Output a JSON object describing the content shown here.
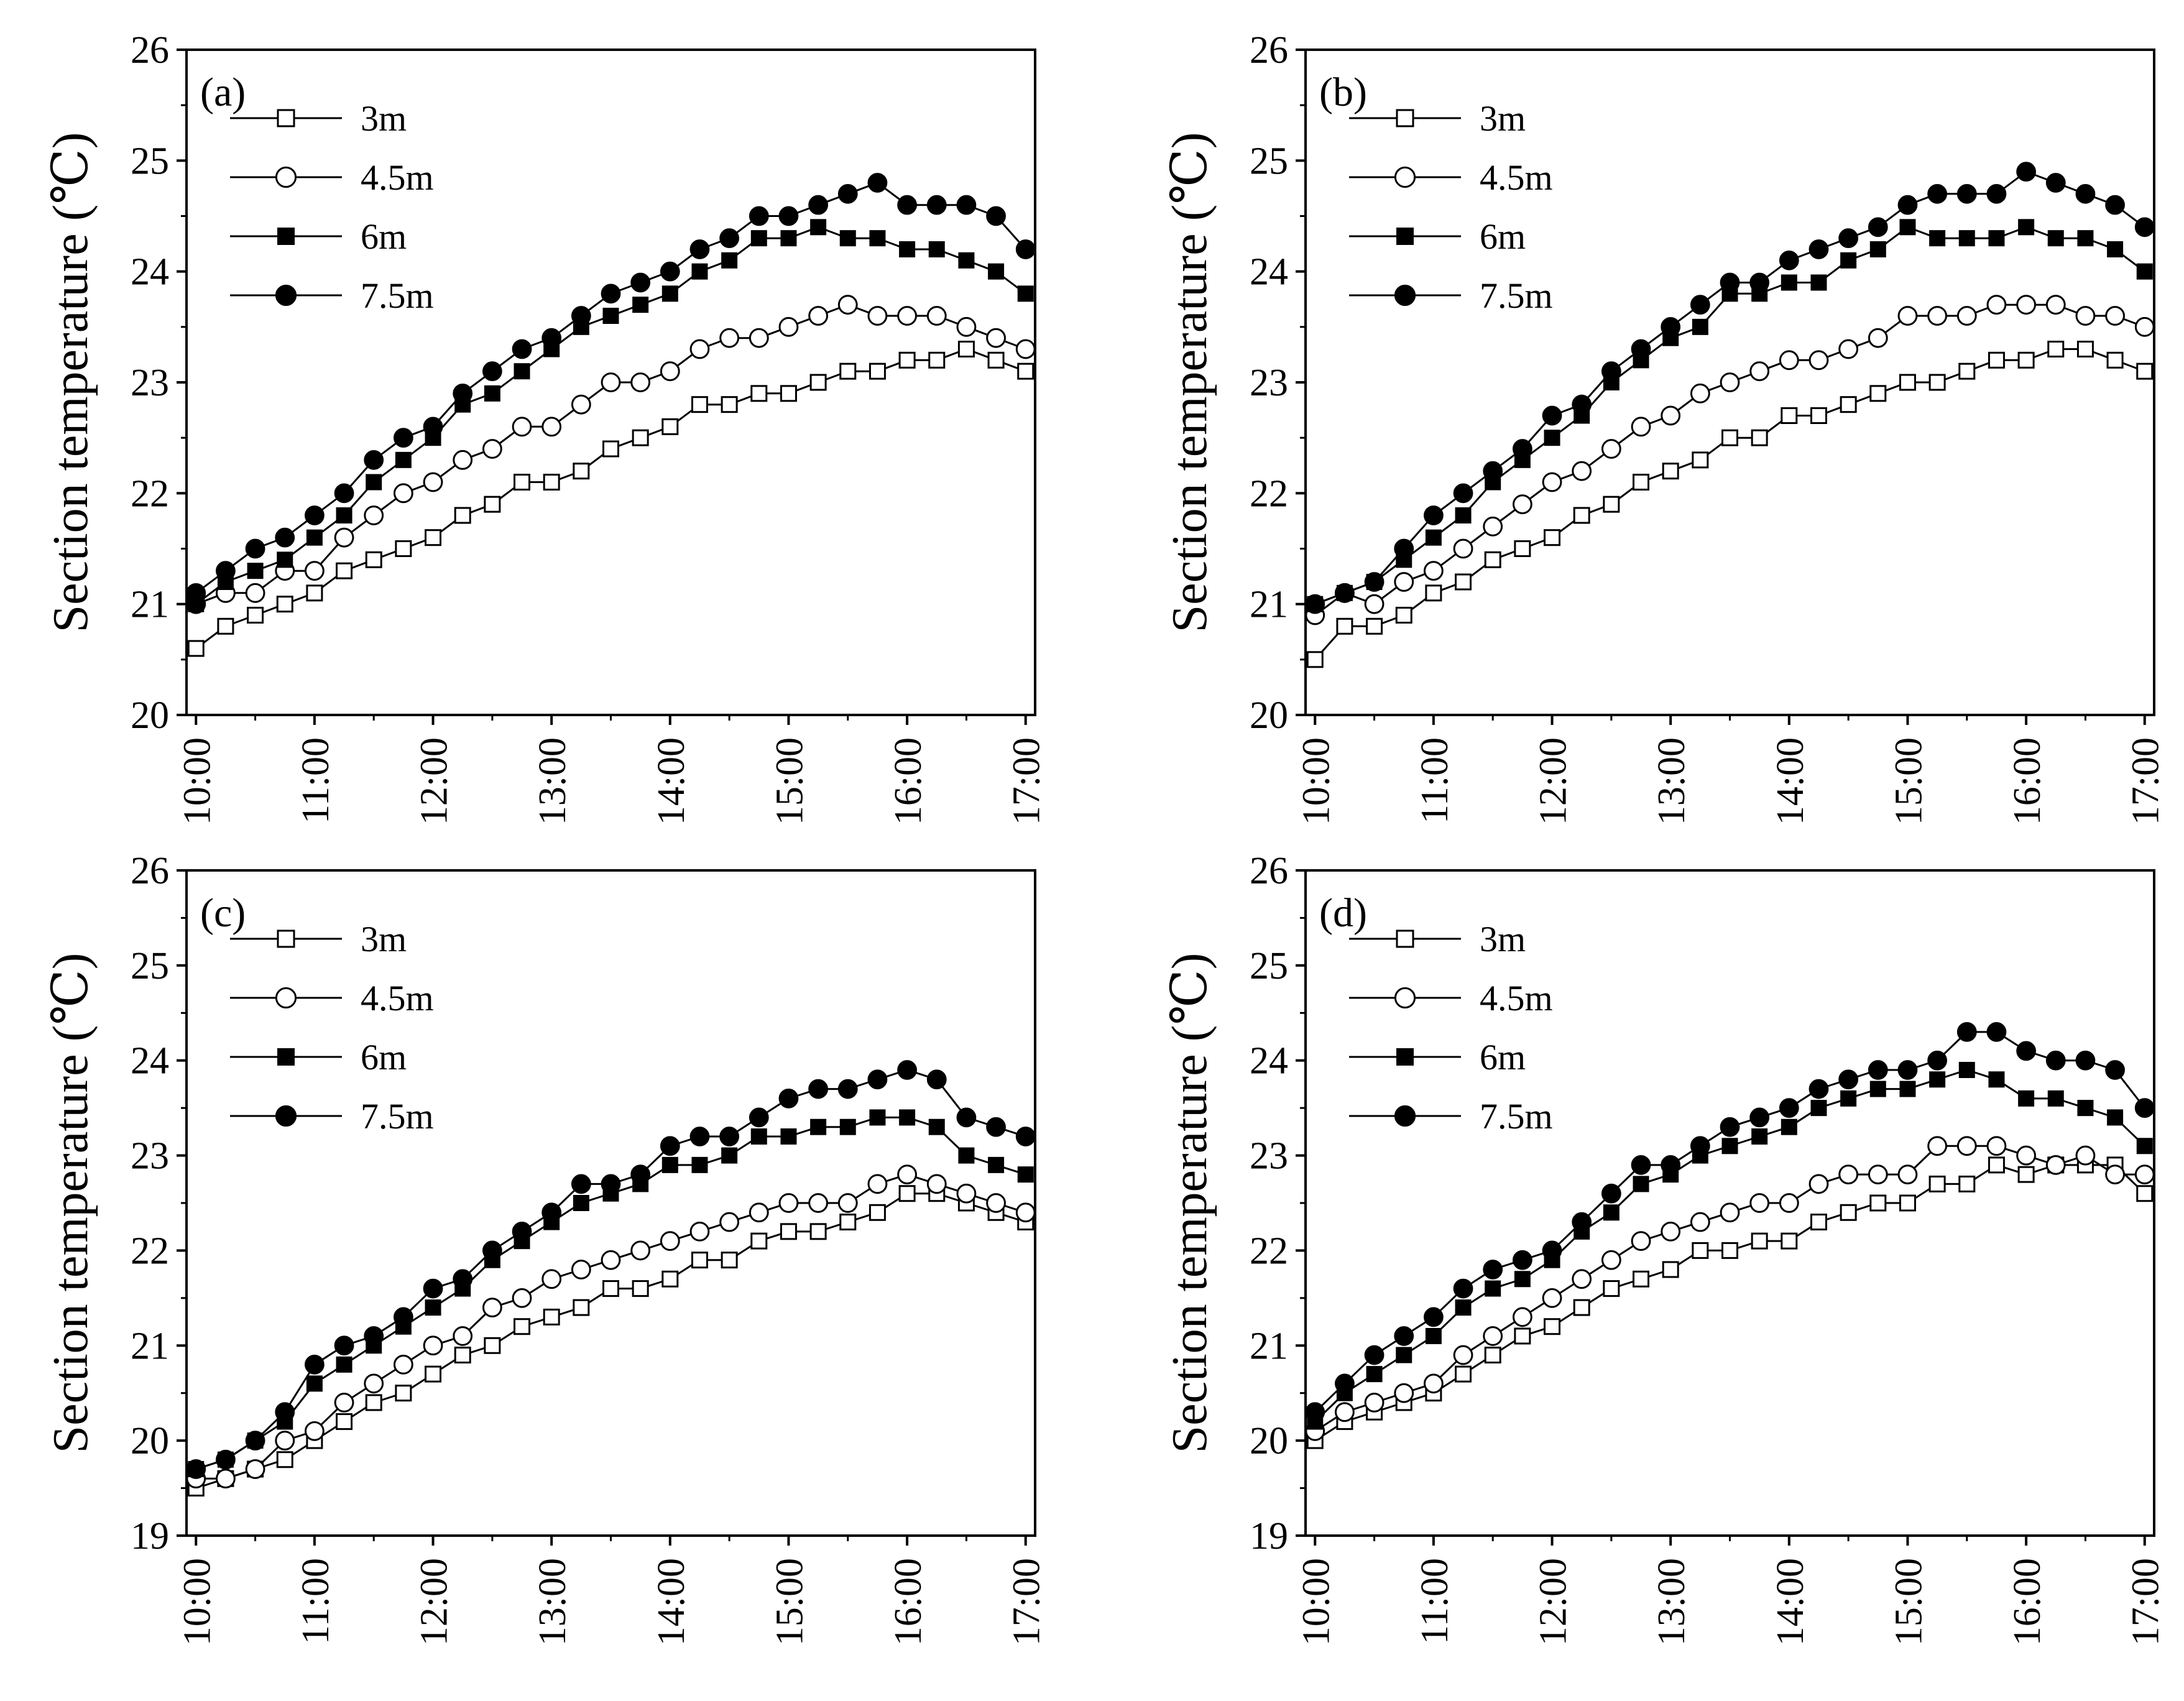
{
  "figure": {
    "ylabel": "Section temperature (℃)",
    "legend": [
      "3m",
      "4.5m",
      "6m",
      "7.5m"
    ]
  },
  "chart_data": [
    {
      "type": "line",
      "panel_label": "(a)",
      "title": "",
      "xlabel": "",
      "ylabel": "Section temperature (℃)",
      "x": [
        10,
        10.25,
        10.5,
        10.75,
        11,
        11.25,
        11.5,
        11.75,
        12,
        12.25,
        12.5,
        12.75,
        13,
        13.25,
        13.5,
        13.75,
        14,
        14.25,
        14.5,
        14.75,
        15,
        15.25,
        15.5,
        15.75,
        16,
        16.25,
        16.5,
        16.75,
        17
      ],
      "xticks": [
        10,
        11,
        12,
        13,
        14,
        15,
        16,
        17
      ],
      "xticklabels": [
        "10:00",
        "11:00",
        "12:00",
        "13:00",
        "14:00",
        "15:00",
        "16:00",
        "17:00"
      ],
      "ylim": [
        20,
        26
      ],
      "yticks": [
        20,
        21,
        22,
        23,
        24,
        25,
        26
      ],
      "legend_position": "top-left",
      "series": [
        {
          "name": "3m",
          "marker": "open-square",
          "values": [
            20.6,
            20.8,
            20.9,
            21.0,
            21.1,
            21.3,
            21.4,
            21.5,
            21.6,
            21.8,
            21.9,
            22.1,
            22.1,
            22.2,
            22.4,
            22.5,
            22.6,
            22.8,
            22.8,
            22.9,
            22.9,
            23.0,
            23.1,
            23.1,
            23.2,
            23.2,
            23.3,
            23.2,
            23.1
          ]
        },
        {
          "name": "4.5m",
          "marker": "open-circle",
          "values": [
            21.0,
            21.1,
            21.1,
            21.3,
            21.3,
            21.6,
            21.8,
            22.0,
            22.1,
            22.3,
            22.4,
            22.6,
            22.6,
            22.8,
            23.0,
            23.0,
            23.1,
            23.3,
            23.4,
            23.4,
            23.5,
            23.6,
            23.7,
            23.6,
            23.6,
            23.6,
            23.5,
            23.4,
            23.3
          ]
        },
        {
          "name": "6m",
          "marker": "filled-square",
          "values": [
            21.0,
            21.2,
            21.3,
            21.4,
            21.6,
            21.8,
            22.1,
            22.3,
            22.5,
            22.8,
            22.9,
            23.1,
            23.3,
            23.5,
            23.6,
            23.7,
            23.8,
            24.0,
            24.1,
            24.3,
            24.3,
            24.4,
            24.3,
            24.3,
            24.2,
            24.2,
            24.1,
            24.0,
            23.8
          ]
        },
        {
          "name": "7.5m",
          "marker": "filled-circle",
          "values": [
            21.1,
            21.3,
            21.5,
            21.6,
            21.8,
            22.0,
            22.3,
            22.5,
            22.6,
            22.9,
            23.1,
            23.3,
            23.4,
            23.6,
            23.8,
            23.9,
            24.0,
            24.2,
            24.3,
            24.5,
            24.5,
            24.6,
            24.7,
            24.8,
            24.6,
            24.6,
            24.6,
            24.5,
            24.2
          ]
        }
      ]
    },
    {
      "type": "line",
      "panel_label": "(b)",
      "title": "",
      "xlabel": "",
      "ylabel": "Section temperature (℃)",
      "x": [
        10,
        10.25,
        10.5,
        10.75,
        11,
        11.25,
        11.5,
        11.75,
        12,
        12.25,
        12.5,
        12.75,
        13,
        13.25,
        13.5,
        13.75,
        14,
        14.25,
        14.5,
        14.75,
        15,
        15.25,
        15.5,
        15.75,
        16,
        16.25,
        16.5,
        16.75,
        17
      ],
      "xticks": [
        10,
        11,
        12,
        13,
        14,
        15,
        16,
        17
      ],
      "xticklabels": [
        "10:00",
        "11:00",
        "12:00",
        "13:00",
        "14:00",
        "15:00",
        "16:00",
        "17:00"
      ],
      "ylim": [
        20,
        26
      ],
      "yticks": [
        20,
        21,
        22,
        23,
        24,
        25,
        26
      ],
      "legend_position": "top-left",
      "series": [
        {
          "name": "3m",
          "marker": "open-square",
          "values": [
            20.5,
            20.8,
            20.8,
            20.9,
            21.1,
            21.2,
            21.4,
            21.5,
            21.6,
            21.8,
            21.9,
            22.1,
            22.2,
            22.3,
            22.5,
            22.5,
            22.7,
            22.7,
            22.8,
            22.9,
            23.0,
            23.0,
            23.1,
            23.2,
            23.2,
            23.3,
            23.3,
            23.2,
            23.1
          ]
        },
        {
          "name": "4.5m",
          "marker": "open-circle",
          "values": [
            20.9,
            21.1,
            21.0,
            21.2,
            21.3,
            21.5,
            21.7,
            21.9,
            22.1,
            22.2,
            22.4,
            22.6,
            22.7,
            22.9,
            23.0,
            23.1,
            23.2,
            23.2,
            23.3,
            23.4,
            23.6,
            23.6,
            23.6,
            23.7,
            23.7,
            23.7,
            23.6,
            23.6,
            23.5
          ]
        },
        {
          "name": "6m",
          "marker": "filled-square",
          "values": [
            21.0,
            21.1,
            21.2,
            21.4,
            21.6,
            21.8,
            22.1,
            22.3,
            22.5,
            22.7,
            23.0,
            23.2,
            23.4,
            23.5,
            23.8,
            23.8,
            23.9,
            23.9,
            24.1,
            24.2,
            24.4,
            24.3,
            24.3,
            24.3,
            24.4,
            24.3,
            24.3,
            24.2,
            24.0
          ]
        },
        {
          "name": "7.5m",
          "marker": "filled-circle",
          "values": [
            21.0,
            21.1,
            21.2,
            21.5,
            21.8,
            22.0,
            22.2,
            22.4,
            22.7,
            22.8,
            23.1,
            23.3,
            23.5,
            23.7,
            23.9,
            23.9,
            24.1,
            24.2,
            24.3,
            24.4,
            24.6,
            24.7,
            24.7,
            24.7,
            24.9,
            24.8,
            24.7,
            24.6,
            24.4
          ]
        }
      ]
    },
    {
      "type": "line",
      "panel_label": "(c)",
      "title": "",
      "xlabel": "",
      "ylabel": "Section temperature (℃)",
      "x": [
        10,
        10.25,
        10.5,
        10.75,
        11,
        11.25,
        11.5,
        11.75,
        12,
        12.25,
        12.5,
        12.75,
        13,
        13.25,
        13.5,
        13.75,
        14,
        14.25,
        14.5,
        14.75,
        15,
        15.25,
        15.5,
        15.75,
        16,
        16.25,
        16.5,
        16.75,
        17
      ],
      "xticks": [
        10,
        11,
        12,
        13,
        14,
        15,
        16,
        17
      ],
      "xticklabels": [
        "10:00",
        "11:00",
        "12:00",
        "13:00",
        "14:00",
        "15:00",
        "16:00",
        "17:00"
      ],
      "ylim": [
        19,
        26
      ],
      "yticks": [
        19,
        20,
        21,
        22,
        23,
        24,
        25,
        26
      ],
      "legend_position": "top-left",
      "series": [
        {
          "name": "3m",
          "marker": "open-square",
          "values": [
            19.5,
            19.6,
            19.7,
            19.8,
            20.0,
            20.2,
            20.4,
            20.5,
            20.7,
            20.9,
            21.0,
            21.2,
            21.3,
            21.4,
            21.6,
            21.6,
            21.7,
            21.9,
            21.9,
            22.1,
            22.2,
            22.2,
            22.3,
            22.4,
            22.6,
            22.6,
            22.5,
            22.4,
            22.3
          ]
        },
        {
          "name": "4.5m",
          "marker": "open-circle",
          "values": [
            19.6,
            19.6,
            19.7,
            20.0,
            20.1,
            20.4,
            20.6,
            20.8,
            21.0,
            21.1,
            21.4,
            21.5,
            21.7,
            21.8,
            21.9,
            22.0,
            22.1,
            22.2,
            22.3,
            22.4,
            22.5,
            22.5,
            22.5,
            22.7,
            22.8,
            22.7,
            22.6,
            22.5,
            22.4
          ]
        },
        {
          "name": "6m",
          "marker": "filled-square",
          "values": [
            19.7,
            19.8,
            20.0,
            20.2,
            20.6,
            20.8,
            21.0,
            21.2,
            21.4,
            21.6,
            21.9,
            22.1,
            22.3,
            22.5,
            22.6,
            22.7,
            22.9,
            22.9,
            23.0,
            23.2,
            23.2,
            23.3,
            23.3,
            23.4,
            23.4,
            23.3,
            23.0,
            22.9,
            22.8
          ]
        },
        {
          "name": "7.5m",
          "marker": "filled-circle",
          "values": [
            19.7,
            19.8,
            20.0,
            20.3,
            20.8,
            21.0,
            21.1,
            21.3,
            21.6,
            21.7,
            22.0,
            22.2,
            22.4,
            22.7,
            22.7,
            22.8,
            23.1,
            23.2,
            23.2,
            23.4,
            23.6,
            23.7,
            23.7,
            23.8,
            23.9,
            23.8,
            23.4,
            23.3,
            23.2
          ]
        }
      ]
    },
    {
      "type": "line",
      "panel_label": "(d)",
      "title": "",
      "xlabel": "",
      "ylabel": "Section temperature (℃)",
      "x": [
        10,
        10.25,
        10.5,
        10.75,
        11,
        11.25,
        11.5,
        11.75,
        12,
        12.25,
        12.5,
        12.75,
        13,
        13.25,
        13.5,
        13.75,
        14,
        14.25,
        14.5,
        14.75,
        15,
        15.25,
        15.5,
        15.75,
        16,
        16.25,
        16.5,
        16.75,
        17
      ],
      "xticks": [
        10,
        11,
        12,
        13,
        14,
        15,
        16,
        17
      ],
      "xticklabels": [
        "10:00",
        "11:00",
        "12:00",
        "13:00",
        "14:00",
        "15:00",
        "16:00",
        "17:00"
      ],
      "ylim": [
        19,
        26
      ],
      "yticks": [
        19,
        20,
        21,
        22,
        23,
        24,
        25,
        26
      ],
      "legend_position": "top-left",
      "series": [
        {
          "name": "3m",
          "marker": "open-square",
          "values": [
            20.0,
            20.2,
            20.3,
            20.4,
            20.5,
            20.7,
            20.9,
            21.1,
            21.2,
            21.4,
            21.6,
            21.7,
            21.8,
            22.0,
            22.0,
            22.1,
            22.1,
            22.3,
            22.4,
            22.5,
            22.5,
            22.7,
            22.7,
            22.9,
            22.8,
            22.9,
            22.9,
            22.9,
            22.6
          ]
        },
        {
          "name": "4.5m",
          "marker": "open-circle",
          "values": [
            20.1,
            20.3,
            20.4,
            20.5,
            20.6,
            20.9,
            21.1,
            21.3,
            21.5,
            21.7,
            21.9,
            22.1,
            22.2,
            22.3,
            22.4,
            22.5,
            22.5,
            22.7,
            22.8,
            22.8,
            22.8,
            23.1,
            23.1,
            23.1,
            23.0,
            22.9,
            23.0,
            22.8,
            22.8
          ]
        },
        {
          "name": "6m",
          "marker": "filled-square",
          "values": [
            20.2,
            20.5,
            20.7,
            20.9,
            21.1,
            21.4,
            21.6,
            21.7,
            21.9,
            22.2,
            22.4,
            22.7,
            22.8,
            23.0,
            23.1,
            23.2,
            23.3,
            23.5,
            23.6,
            23.7,
            23.7,
            23.8,
            23.9,
            23.8,
            23.6,
            23.6,
            23.5,
            23.4,
            23.1
          ]
        },
        {
          "name": "7.5m",
          "marker": "filled-circle",
          "values": [
            20.3,
            20.6,
            20.9,
            21.1,
            21.3,
            21.6,
            21.8,
            21.9,
            22.0,
            22.3,
            22.6,
            22.9,
            22.9,
            23.1,
            23.3,
            23.4,
            23.5,
            23.7,
            23.8,
            23.9,
            23.9,
            24.0,
            24.3,
            24.3,
            24.1,
            24.0,
            24.0,
            23.9,
            23.5
          ]
        }
      ]
    }
  ]
}
